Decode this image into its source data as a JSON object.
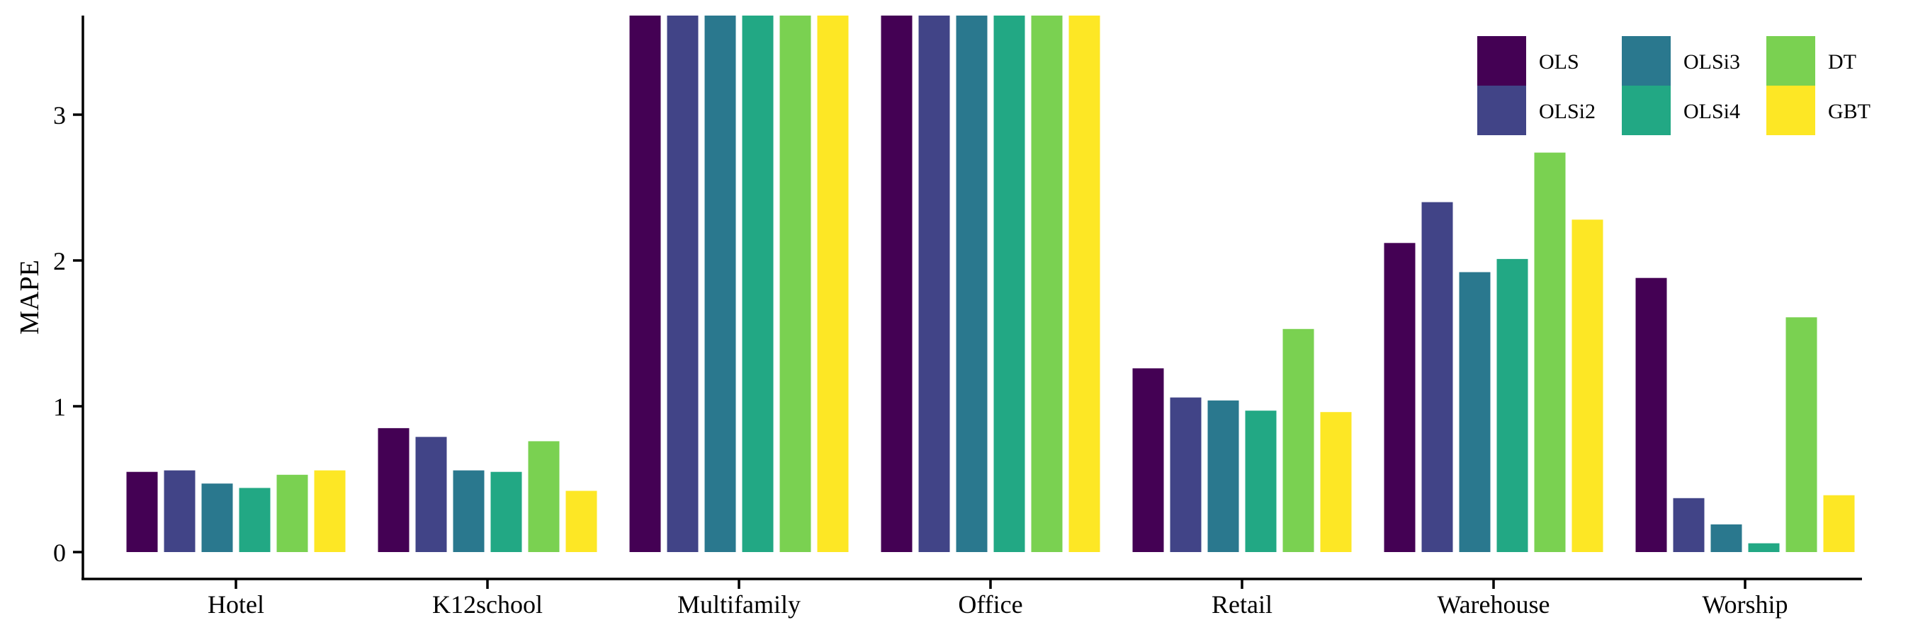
{
  "chart_data": {
    "type": "bar",
    "title": "",
    "xlabel": "",
    "ylabel": "MAPE",
    "ylim": [
      -0.03,
      3.68
    ],
    "yticks": [
      0,
      1,
      2,
      3
    ],
    "grid": false,
    "legend_position": "top-right",
    "categories": [
      "Hotel",
      "K12school",
      "Multifamily",
      "Office",
      "Retail",
      "Warehouse",
      "Worship"
    ],
    "series": [
      {
        "name": "OLS",
        "color": "#440154",
        "values": [
          0.55,
          0.85,
          3.68,
          3.68,
          1.26,
          2.12,
          1.88
        ]
      },
      {
        "name": "OLSi2",
        "color": "#414487",
        "values": [
          0.56,
          0.79,
          3.68,
          3.68,
          1.06,
          2.4,
          0.37
        ]
      },
      {
        "name": "OLSi3",
        "color": "#2A788E",
        "values": [
          0.47,
          0.56,
          3.68,
          3.68,
          1.04,
          1.92,
          0.19
        ]
      },
      {
        "name": "OLSi4",
        "color": "#22A884",
        "values": [
          0.44,
          0.55,
          3.68,
          3.68,
          0.97,
          2.01,
          0.06
        ]
      },
      {
        "name": "DT",
        "color": "#7AD151",
        "values": [
          0.53,
          0.76,
          3.68,
          3.68,
          1.53,
          2.74,
          1.61
        ]
      },
      {
        "name": "GBT",
        "color": "#FDE725",
        "values": [
          0.56,
          0.42,
          3.68,
          3.68,
          0.96,
          2.28,
          0.39
        ]
      }
    ]
  }
}
